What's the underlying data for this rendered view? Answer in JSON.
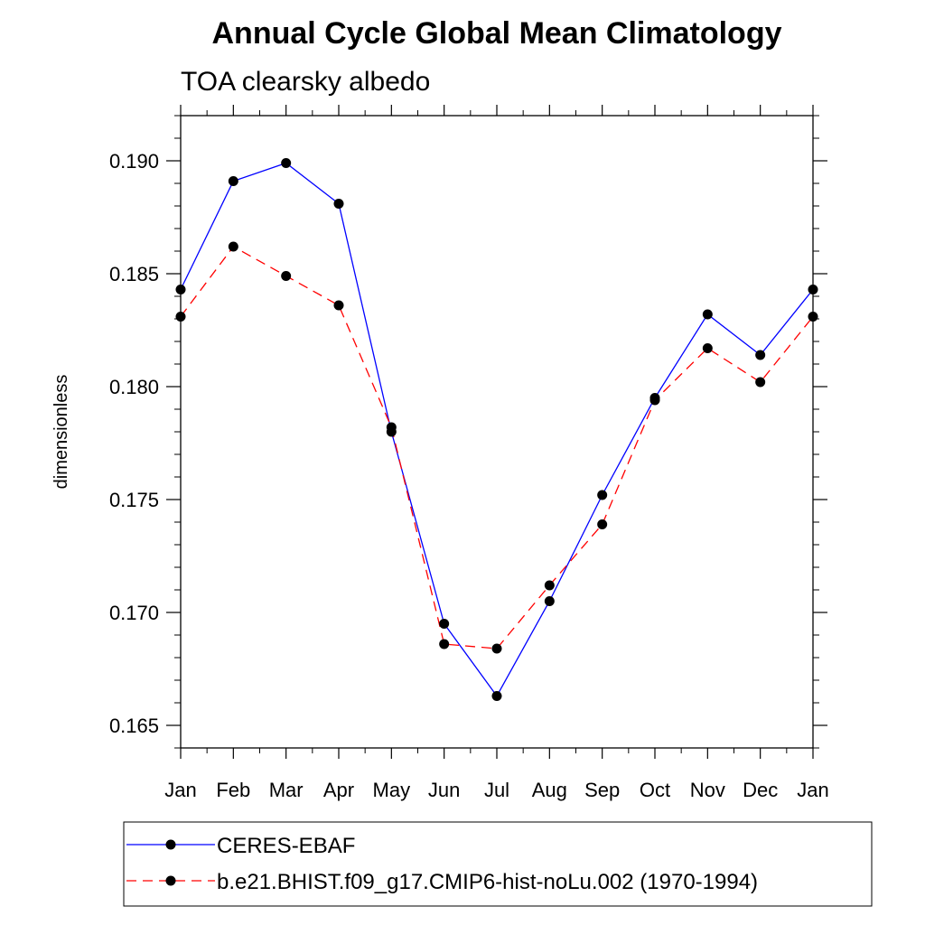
{
  "chart_data": {
    "type": "line",
    "title": "Annual Cycle Global Mean Climatology",
    "subtitle": "TOA clearsky albedo",
    "ylabel": "dimensionless",
    "xlabel": "",
    "categories": [
      "Jan",
      "Feb",
      "Mar",
      "Apr",
      "May",
      "Jun",
      "Jul",
      "Aug",
      "Sep",
      "Oct",
      "Nov",
      "Dec",
      "Jan"
    ],
    "ylim": [
      0.164,
      0.192
    ],
    "y_ticks": [
      "0.165",
      "0.170",
      "0.175",
      "0.180",
      "0.185",
      "0.190"
    ],
    "grid": false,
    "legend_position": "bottom",
    "series": [
      {
        "name": "CERES-EBAF",
        "color": "#0000ff",
        "line_style": "solid",
        "marker": "filled-circle",
        "values": [
          0.1843,
          0.1891,
          0.1899,
          0.1881,
          0.178,
          0.1695,
          0.1663,
          0.1705,
          0.1752,
          0.1795,
          0.1832,
          0.1814,
          0.1843
        ]
      },
      {
        "name": "b.e21.BHIST.f09_g17.CMIP6-hist-noLu.002 (1970-1994)",
        "color": "#ff0000",
        "line_style": "dashed",
        "marker": "filled-circle",
        "values": [
          0.1831,
          0.1862,
          0.1849,
          0.1836,
          0.1782,
          0.1686,
          0.1684,
          0.1712,
          0.1739,
          0.1794,
          0.1817,
          0.1802,
          0.1831
        ]
      }
    ]
  }
}
